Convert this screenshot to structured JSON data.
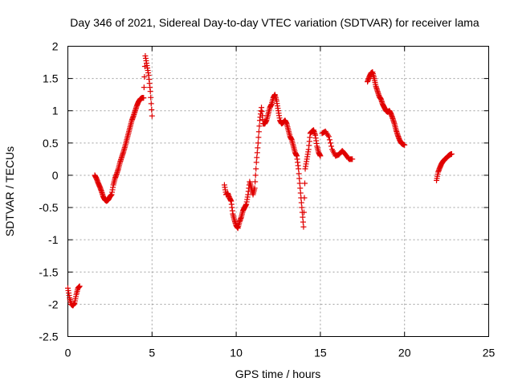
{
  "chart_data": {
    "type": "scatter",
    "title": "Day 346 of 2021, Sidereal Day-to-day VTEC variation (SDTVAR) for receiver lama",
    "xlabel": "GPS time / hours",
    "ylabel": "SDTVAR / TECUs",
    "xlim": [
      0,
      25
    ],
    "ylim": [
      -2.5,
      2
    ],
    "xticks": [
      "0",
      "5",
      "10",
      "15",
      "20",
      "25"
    ],
    "xtick_values": [
      0,
      5,
      10,
      15,
      20,
      25
    ],
    "yticks": [
      "-2.5",
      "-2",
      "-1.5",
      "-1",
      "-0.5",
      "0",
      "0.5",
      "1",
      "1.5",
      "2"
    ],
    "ytick_values": [
      -2.5,
      -2,
      -1.5,
      -1,
      -0.5,
      0,
      0.5,
      1,
      1.5,
      2
    ],
    "grid": true,
    "marker": "plus",
    "color": "#e00000",
    "segments": [
      {
        "x": [
          0.0,
          0.1,
          0.2,
          0.3,
          0.4,
          0.5,
          0.6,
          0.7
        ],
        "y": [
          -1.75,
          -1.9,
          -2.0,
          -2.02,
          -1.98,
          -1.85,
          -1.75,
          -1.72
        ]
      },
      {
        "x": [
          1.6,
          1.7,
          1.8,
          1.9,
          2.0,
          2.1,
          2.2,
          2.3,
          2.4,
          2.5,
          2.6,
          2.7,
          2.8,
          2.9,
          3.0,
          3.1,
          3.2,
          3.3,
          3.4,
          3.5,
          3.6,
          3.7,
          3.8,
          3.9,
          4.0,
          4.1,
          4.2,
          4.3,
          4.4,
          4.5,
          4.6,
          4.7,
          4.8,
          4.9,
          5.0
        ],
        "y": [
          0.0,
          -0.05,
          -0.12,
          -0.18,
          -0.25,
          -0.33,
          -0.38,
          -0.4,
          -0.38,
          -0.33,
          -0.3,
          -0.15,
          -0.05,
          0.02,
          0.1,
          0.2,
          0.28,
          0.36,
          0.45,
          0.55,
          0.65,
          0.75,
          0.85,
          0.92,
          1.0,
          1.08,
          1.14,
          1.18,
          1.2,
          1.2,
          1.85,
          1.7,
          1.55,
          1.3,
          0.92
        ]
      },
      {
        "x": [
          9.3,
          9.4,
          9.5,
          9.6,
          9.7,
          9.8,
          9.9,
          10.0,
          10.1,
          10.2,
          10.3,
          10.4,
          10.5,
          10.6,
          10.7,
          10.8,
          10.9,
          11.0,
          11.1,
          11.2,
          11.3,
          11.4,
          11.5,
          11.6,
          11.7,
          11.8,
          11.9,
          12.0,
          12.1,
          12.2,
          12.3,
          12.4,
          12.5,
          12.6,
          12.7,
          12.8,
          12.9,
          13.0,
          13.1,
          13.2,
          13.3,
          13.4,
          13.5,
          13.6,
          13.7,
          13.8,
          13.9,
          14.0,
          14.1,
          14.2,
          14.3,
          14.4,
          14.5,
          14.6,
          14.7,
          14.8,
          14.9,
          15.0
        ],
        "y": [
          -0.15,
          -0.3,
          -0.28,
          -0.35,
          -0.4,
          -0.6,
          -0.7,
          -0.78,
          -0.82,
          -0.72,
          -0.65,
          -0.55,
          -0.5,
          -0.45,
          -0.3,
          -0.1,
          -0.2,
          -0.3,
          -0.2,
          0.2,
          0.5,
          0.85,
          1.05,
          0.8,
          0.8,
          0.85,
          0.95,
          1.05,
          1.1,
          1.2,
          1.25,
          1.15,
          1.0,
          0.85,
          0.8,
          0.82,
          0.85,
          0.8,
          0.7,
          0.6,
          0.55,
          0.45,
          0.35,
          0.3,
          0.1,
          -0.2,
          -0.5,
          -0.8,
          0.1,
          0.25,
          0.4,
          0.65,
          0.68,
          0.7,
          0.62,
          0.45,
          0.35,
          0.3
        ]
      },
      {
        "x": [
          15.1,
          15.3,
          15.5,
          15.7,
          15.9,
          16.1,
          16.3,
          16.5,
          16.7,
          16.9
        ],
        "y": [
          0.65,
          0.68,
          0.6,
          0.4,
          0.3,
          0.32,
          0.38,
          0.32,
          0.25,
          0.25
        ]
      },
      {
        "x": [
          17.8,
          17.9,
          18.0,
          18.1,
          18.2,
          18.3,
          18.4,
          18.5,
          18.6,
          18.7,
          18.8,
          18.9,
          19.0,
          19.1,
          19.2,
          19.3,
          19.4,
          19.5,
          19.6,
          19.7,
          19.8,
          19.9,
          20.0
        ],
        "y": [
          1.45,
          1.52,
          1.58,
          1.6,
          1.5,
          1.38,
          1.3,
          1.22,
          1.18,
          1.1,
          1.05,
          1.0,
          0.98,
          1.0,
          0.95,
          0.88,
          0.8,
          0.7,
          0.62,
          0.55,
          0.5,
          0.48,
          0.47
        ]
      },
      {
        "x": [
          21.9,
          22.0,
          22.1,
          22.2,
          22.3,
          22.4,
          22.5,
          22.6,
          22.7,
          22.8
        ],
        "y": [
          -0.08,
          0.05,
          0.12,
          0.18,
          0.22,
          0.25,
          0.27,
          0.3,
          0.32,
          0.33
        ]
      }
    ]
  }
}
